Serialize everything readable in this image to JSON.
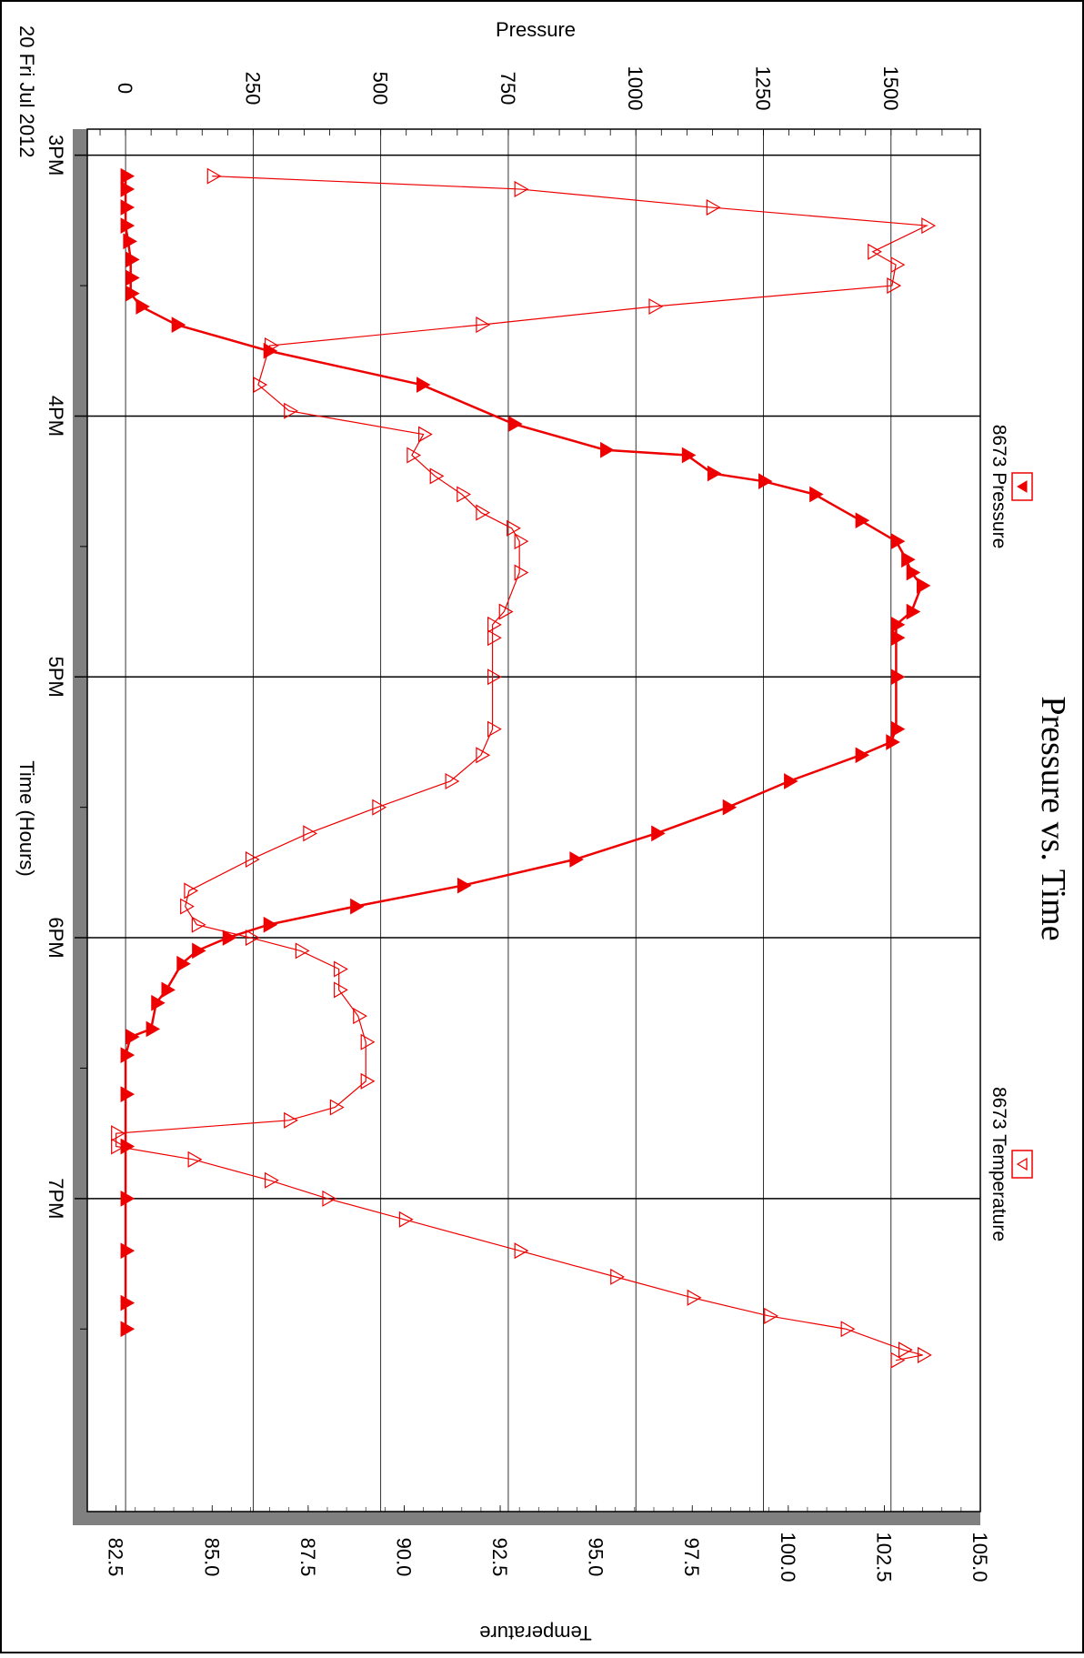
{
  "chart_data": {
    "type": "line",
    "title": "Pressure vs. Time",
    "date_label": "20 Fri Jul 2012",
    "xlabel": "Time (Hours)",
    "y_left_label": "Pressure",
    "y_right_label": "Temperature",
    "x_ticks": [
      "3PM",
      "4PM",
      "5PM",
      "6PM",
      "7PM"
    ],
    "x_tick_hours": [
      15,
      16,
      17,
      18,
      19
    ],
    "xlim": [
      14.9,
      20.2
    ],
    "pressure_ticks": [
      0,
      250,
      500,
      750,
      1000,
      1250,
      1500
    ],
    "pressure_lim": [
      -75,
      1675
    ],
    "temperature_ticks": [
      "82.5",
      "85.0",
      "87.5",
      "90.0",
      "92.5",
      "95.0",
      "97.5",
      "100.0",
      "102.5",
      "105.0"
    ],
    "temperature_tick_values": [
      82.5,
      85.0,
      87.5,
      90.0,
      92.5,
      95.0,
      97.5,
      100.0,
      102.5,
      105.0
    ],
    "temperature_lim": [
      81.75,
      105.0
    ],
    "legend": [
      {
        "name": "8673 Pressure",
        "marker": "filled-triangle",
        "position": "top-left"
      },
      {
        "name": "8673 Temperature",
        "marker": "open-triangle",
        "position": "top-right"
      }
    ],
    "colors": {
      "series": "#ee0000",
      "frame": "#000000",
      "grid": "#000000",
      "shadow": "#808080"
    },
    "grid": true,
    "series": [
      {
        "name": "8673 Pressure",
        "axis": "left",
        "marker": "filled-triangle",
        "points": [
          [
            15.08,
            0
          ],
          [
            15.13,
            0
          ],
          [
            15.2,
            0
          ],
          [
            15.27,
            0
          ],
          [
            15.33,
            5
          ],
          [
            15.4,
            10
          ],
          [
            15.47,
            10
          ],
          [
            15.53,
            10
          ],
          [
            15.58,
            30
          ],
          [
            15.65,
            100
          ],
          [
            15.75,
            280
          ],
          [
            15.88,
            580
          ],
          [
            16.03,
            760
          ],
          [
            16.13,
            940
          ],
          [
            16.15,
            1100
          ],
          [
            16.22,
            1150
          ],
          [
            16.25,
            1250
          ],
          [
            16.3,
            1350
          ],
          [
            16.4,
            1440
          ],
          [
            16.48,
            1510
          ],
          [
            16.55,
            1530
          ],
          [
            16.6,
            1540
          ],
          [
            16.65,
            1560
          ],
          [
            16.75,
            1540
          ],
          [
            16.8,
            1510
          ],
          [
            16.85,
            1510
          ],
          [
            17.0,
            1510
          ],
          [
            17.2,
            1510
          ],
          [
            17.25,
            1500
          ],
          [
            17.3,
            1440
          ],
          [
            17.4,
            1300
          ],
          [
            17.5,
            1180
          ],
          [
            17.6,
            1040
          ],
          [
            17.7,
            880
          ],
          [
            17.8,
            660
          ],
          [
            17.88,
            450
          ],
          [
            17.95,
            280
          ],
          [
            18.0,
            200
          ],
          [
            18.05,
            140
          ],
          [
            18.1,
            110
          ],
          [
            18.2,
            80
          ],
          [
            18.25,
            60
          ],
          [
            18.35,
            50
          ],
          [
            18.38,
            10
          ],
          [
            18.45,
            0
          ],
          [
            18.6,
            0
          ],
          [
            18.8,
            0
          ],
          [
            19.0,
            0
          ],
          [
            19.2,
            0
          ],
          [
            19.4,
            0
          ],
          [
            19.5,
            0
          ]
        ]
      },
      {
        "name": "8673 Temperature",
        "axis": "right",
        "marker": "open-triangle",
        "points": [
          [
            15.08,
            85.0
          ],
          [
            15.13,
            93.0
          ],
          [
            15.2,
            98.0
          ],
          [
            15.27,
            103.6
          ],
          [
            15.37,
            102.2
          ],
          [
            15.42,
            102.8
          ],
          [
            15.5,
            102.7
          ],
          [
            15.58,
            96.5
          ],
          [
            15.65,
            92.0
          ],
          [
            15.73,
            86.5
          ],
          [
            15.88,
            86.2
          ],
          [
            15.98,
            87.0
          ],
          [
            16.07,
            90.5
          ],
          [
            16.15,
            90.2
          ],
          [
            16.23,
            90.8
          ],
          [
            16.3,
            91.5
          ],
          [
            16.37,
            92.0
          ],
          [
            16.43,
            92.8
          ],
          [
            16.48,
            93.0
          ],
          [
            16.6,
            93.0
          ],
          [
            16.75,
            92.6
          ],
          [
            16.8,
            92.3
          ],
          [
            16.85,
            92.3
          ],
          [
            17.0,
            92.3
          ],
          [
            17.2,
            92.3
          ],
          [
            17.3,
            92.0
          ],
          [
            17.4,
            91.2
          ],
          [
            17.5,
            89.3
          ],
          [
            17.6,
            87.5
          ],
          [
            17.7,
            86.0
          ],
          [
            17.82,
            84.4
          ],
          [
            17.88,
            84.3
          ],
          [
            17.95,
            84.6
          ],
          [
            18.0,
            86.0
          ],
          [
            18.05,
            87.3
          ],
          [
            18.12,
            88.3
          ],
          [
            18.2,
            88.3
          ],
          [
            18.3,
            88.8
          ],
          [
            18.4,
            89.0
          ],
          [
            18.55,
            89.0
          ],
          [
            18.65,
            88.2
          ],
          [
            18.7,
            87.0
          ],
          [
            18.75,
            82.5
          ],
          [
            18.8,
            82.5
          ],
          [
            18.85,
            84.5
          ],
          [
            18.93,
            86.5
          ],
          [
            19.0,
            88.0
          ],
          [
            19.08,
            90.0
          ],
          [
            19.2,
            93.0
          ],
          [
            19.3,
            95.5
          ],
          [
            19.38,
            97.5
          ],
          [
            19.45,
            99.5
          ],
          [
            19.5,
            101.5
          ],
          [
            19.58,
            103.0
          ],
          [
            19.6,
            103.5
          ],
          [
            19.62,
            102.8
          ]
        ]
      }
    ]
  }
}
